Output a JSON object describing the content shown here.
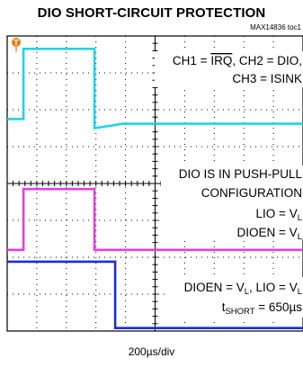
{
  "title": "DIO SHORT-CIRCUIT PROTECTION",
  "figure_id": "MAX14836 toc1",
  "trigger_marker": "T",
  "colors": {
    "ch1": "#22d3e6",
    "ch2": "#e040d8",
    "ch3": "#1a2fd0",
    "grid": "#000000",
    "background": "#ffffff"
  },
  "annotations": {
    "channels_line1_a": "CH1 = ",
    "channels_line1_irq": "IRQ",
    "channels_line1_b": ", CH2 = DIO,",
    "channels_line2": "CH3 = ISINK",
    "config_line1": "DIO IS IN PUSH-PULL",
    "config_line2": "CONFIGURATION",
    "lio_a": "LIO = V",
    "lio_sub": "L",
    "dioen_a": "DIOEN = V",
    "dioen_sub": "L",
    "cond_a": "DIOEN = V",
    "cond_sub1": "L",
    "cond_b": ", LIO = V",
    "cond_sub2": "L",
    "tshort_a": "t",
    "tshort_sub": "SHORT",
    "tshort_b": " = 650µs"
  },
  "chart_data": {
    "type": "line",
    "title": "DIO SHORT-CIRCUIT PROTECTION",
    "xlabel": "200µs/div",
    "ylabel": "",
    "grid": true,
    "x_divisions": 10,
    "y_divisions": 8,
    "x_unit": "µs",
    "xlim": [
      0,
      2000
    ],
    "ylim": [
      0,
      8
    ],
    "series": [
      {
        "name": "CH1",
        "x": [
          0,
          110,
          110,
          590,
          590,
          780,
          2000
        ],
        "y": [
          5.75,
          5.75,
          7.65,
          7.65,
          5.5,
          5.62,
          5.62
        ]
      },
      {
        "name": "CH2",
        "x": [
          0,
          110,
          110,
          590,
          590,
          2000
        ],
        "y": [
          2.2,
          2.2,
          3.85,
          3.85,
          2.2,
          2.2
        ]
      },
      {
        "name": "CH3",
        "x": [
          0,
          730,
          730,
          2000
        ],
        "y": [
          1.88,
          1.88,
          0.08,
          0.08
        ]
      }
    ]
  }
}
